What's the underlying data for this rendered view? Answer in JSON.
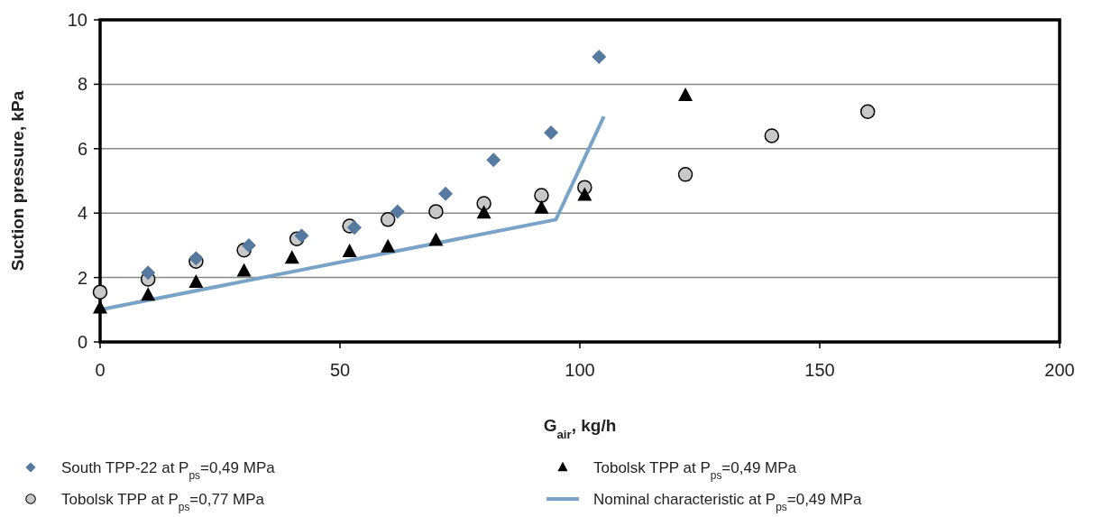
{
  "chart_data": {
    "type": "scatter",
    "xlabel": "G$_{air}$, kg/h",
    "ylabel": "Suction pressure, kPa",
    "xlim": [
      0,
      200
    ],
    "xticks": [
      0,
      50,
      100,
      150,
      200
    ],
    "ylim": [
      0,
      10
    ],
    "yticks": [
      0,
      2,
      4,
      6,
      8,
      10
    ],
    "grid": "y",
    "legend": "bottom",
    "series": [
      {
        "name": "South TPP-22 at P$_{ps}$=0,49 MPa",
        "color": "#55799f",
        "marker": "diamond",
        "x": [
          10,
          20,
          31,
          42,
          53,
          62,
          72,
          82,
          94,
          104
        ],
        "values": [
          2.15,
          2.6,
          3.0,
          3.3,
          3.55,
          4.05,
          4.6,
          5.65,
          6.5,
          8.85
        ]
      },
      {
        "name": "Tobolsk TPP at P$_{ps}$=0,49 MPa",
        "color": "#000000",
        "marker": "triangle",
        "x": [
          0,
          10,
          20,
          30,
          40,
          52,
          60,
          70,
          80,
          92,
          101,
          122
        ],
        "values": [
          1.05,
          1.45,
          1.85,
          2.2,
          2.6,
          2.8,
          2.95,
          3.15,
          4.0,
          4.15,
          4.55,
          7.65
        ]
      },
      {
        "name": "Tobolsk TPP at P$_{ps}$=0,77 MPa",
        "color": "#c8c8c8",
        "marker": "circle",
        "x": [
          0,
          10,
          20,
          30,
          41,
          52,
          60,
          70,
          80,
          92,
          101,
          122,
          140,
          160
        ],
        "values": [
          1.55,
          1.95,
          2.5,
          2.85,
          3.2,
          3.6,
          3.8,
          4.05,
          4.3,
          4.55,
          4.8,
          5.2,
          6.4,
          7.15
        ]
      },
      {
        "name": "Nominal  characteristic at P$_{ps}$=0,49 MPa",
        "type": "line",
        "color": "#7aa3c8",
        "marker": "none",
        "x": [
          0,
          95,
          105
        ],
        "values": [
          1.0,
          3.8,
          7.0
        ]
      }
    ]
  }
}
